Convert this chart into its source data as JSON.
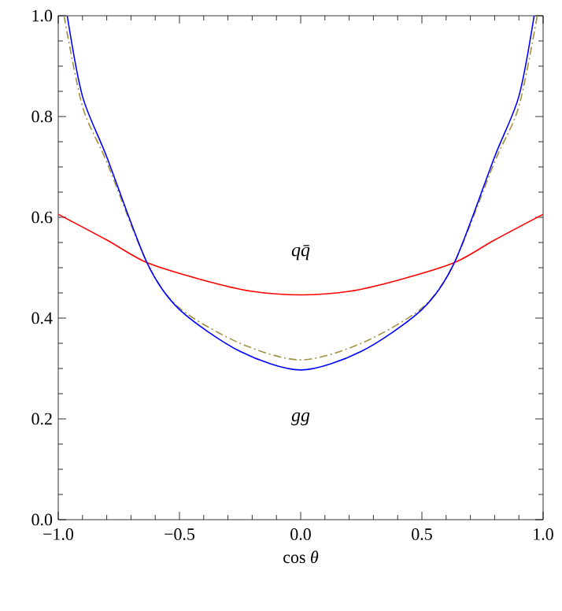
{
  "chart_data": {
    "type": "line",
    "xlabel": "cos *θ*",
    "xlim": [
      -1,
      1
    ],
    "ylim": [
      0,
      1
    ],
    "xticks": [
      {
        "value": -1,
        "label": "−1.0"
      },
      {
        "value": -0.5,
        "label": "−0.5"
      },
      {
        "value": 0,
        "label": "0.0"
      },
      {
        "value": 0.5,
        "label": "0.5"
      },
      {
        "value": 1,
        "label": "1.0"
      }
    ],
    "yticks": [
      {
        "value": 0,
        "label": "0.0"
      },
      {
        "value": 0.2,
        "label": "0.2"
      },
      {
        "value": 0.4,
        "label": "0.4"
      },
      {
        "value": 0.6,
        "label": "0.6"
      },
      {
        "value": 0.8,
        "label": "0.8"
      },
      {
        "value": 1,
        "label": "1.0"
      }
    ],
    "grid": false,
    "series": [
      {
        "color": "#ff0000",
        "line_style": "solid",
        "x": [
          -1,
          -0.8,
          -0.634,
          -0.4,
          -0.2,
          0,
          0.2,
          0.4,
          0.634,
          0.8,
          1
        ],
        "values": [
          0.606,
          0.555,
          0.51,
          0.475,
          0.453,
          0.446,
          0.453,
          0.475,
          0.51,
          0.555,
          0.606
        ]
      },
      {
        "color": "#a09040",
        "line_style": "dashed",
        "x": [
          -0.976,
          -0.9,
          -0.8,
          -0.634,
          -0.5,
          -0.25,
          0,
          0.25,
          0.5,
          0.634,
          0.8,
          0.9,
          0.976
        ],
        "values": [
          1,
          0.82,
          0.71,
          0.51,
          0.42,
          0.35,
          0.317,
          0.35,
          0.42,
          0.51,
          0.71,
          0.82,
          1
        ]
      },
      {
        "color": "#0000ff",
        "line_style": "solid",
        "x": [
          -0.963,
          -0.9,
          -0.8,
          -0.634,
          -0.5,
          -0.25,
          0,
          0.25,
          0.5,
          0.634,
          0.8,
          0.9,
          0.963
        ],
        "values": [
          1,
          0.84,
          0.72,
          0.51,
          0.417,
          0.334,
          0.297,
          0.334,
          0.417,
          0.51,
          0.72,
          0.84,
          1
        ]
      }
    ],
    "annotations": [
      "qq̄",
      "gg"
    ]
  }
}
